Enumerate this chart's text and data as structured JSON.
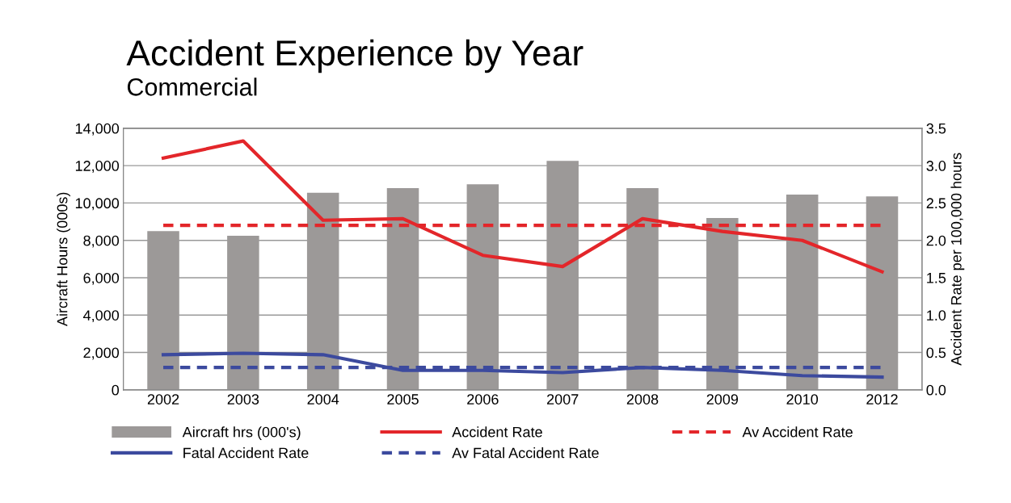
{
  "chart_data": {
    "type": "bar",
    "title": "Accident Experience by Year",
    "subtitle": "Commercial",
    "ylabel": "Aircraft Hours (000s)",
    "y2label": "Accident Rate per 100,000 hours",
    "categories": [
      "2002",
      "2003",
      "2004",
      "2005",
      "2006",
      "2007",
      "2008",
      "2009",
      "2010",
      "2012"
    ],
    "series": [
      {
        "name": "Aircraft hrs (000's)",
        "color": "#9c9998",
        "values": [
          8500,
          8250,
          10550,
          10800,
          11000,
          12250,
          10800,
          9200,
          10450,
          10350
        ]
      },
      {
        "name": "Accident Rate",
        "type": "line",
        "axis": "y2",
        "color": "#e3262a",
        "line_style": "solid",
        "values": [
          3.1,
          3.33,
          2.27,
          2.29,
          1.8,
          1.65,
          2.29,
          2.12,
          2.0,
          1.58
        ]
      },
      {
        "name": "Av Accident Rate",
        "type": "line",
        "axis": "y2",
        "color": "#e3262a",
        "line_style": "dashed",
        "values": [
          2.2,
          2.2,
          2.2,
          2.2,
          2.2,
          2.2,
          2.2,
          2.2,
          2.2,
          2.2
        ]
      },
      {
        "name": "Fatal Accident Rate",
        "type": "line",
        "axis": "y2",
        "color": "#3c4a9e",
        "line_style": "solid",
        "values": [
          0.47,
          0.49,
          0.47,
          0.26,
          0.26,
          0.23,
          0.3,
          0.26,
          0.19,
          0.17
        ]
      },
      {
        "name": "Av Fatal Accident Rate",
        "type": "line",
        "axis": "y2",
        "color": "#3c4a9e",
        "line_style": "dashed",
        "values": [
          0.3,
          0.3,
          0.3,
          0.3,
          0.3,
          0.3,
          0.3,
          0.3,
          0.3,
          0.3
        ]
      }
    ],
    "ylim": [
      0,
      14000
    ],
    "yticks": [
      {
        "value": 0,
        "label": "0"
      },
      {
        "value": 2000,
        "label": "2,000"
      },
      {
        "value": 4000,
        "label": "4,000"
      },
      {
        "value": 6000,
        "label": "6,000"
      },
      {
        "value": 8000,
        "label": "8,000"
      },
      {
        "value": 10000,
        "label": "10,000"
      },
      {
        "value": 12000,
        "label": "12,000"
      },
      {
        "value": 14000,
        "label": "14,000"
      }
    ],
    "y2lim": [
      0,
      3.5
    ],
    "y2ticks": [
      {
        "value": 0,
        "label": "0.0"
      },
      {
        "value": 0.5,
        "label": "0.5"
      },
      {
        "value": 1,
        "label": "1.0"
      },
      {
        "value": 1.5,
        "label": "1.5"
      },
      {
        "value": 2,
        "label": "2.0"
      },
      {
        "value": 2.5,
        "label": "2.5"
      },
      {
        "value": 3,
        "label": "3.0"
      },
      {
        "value": 3.5,
        "label": "3.5"
      }
    ],
    "grid": "y",
    "legend": "bottom",
    "marker": "none"
  }
}
